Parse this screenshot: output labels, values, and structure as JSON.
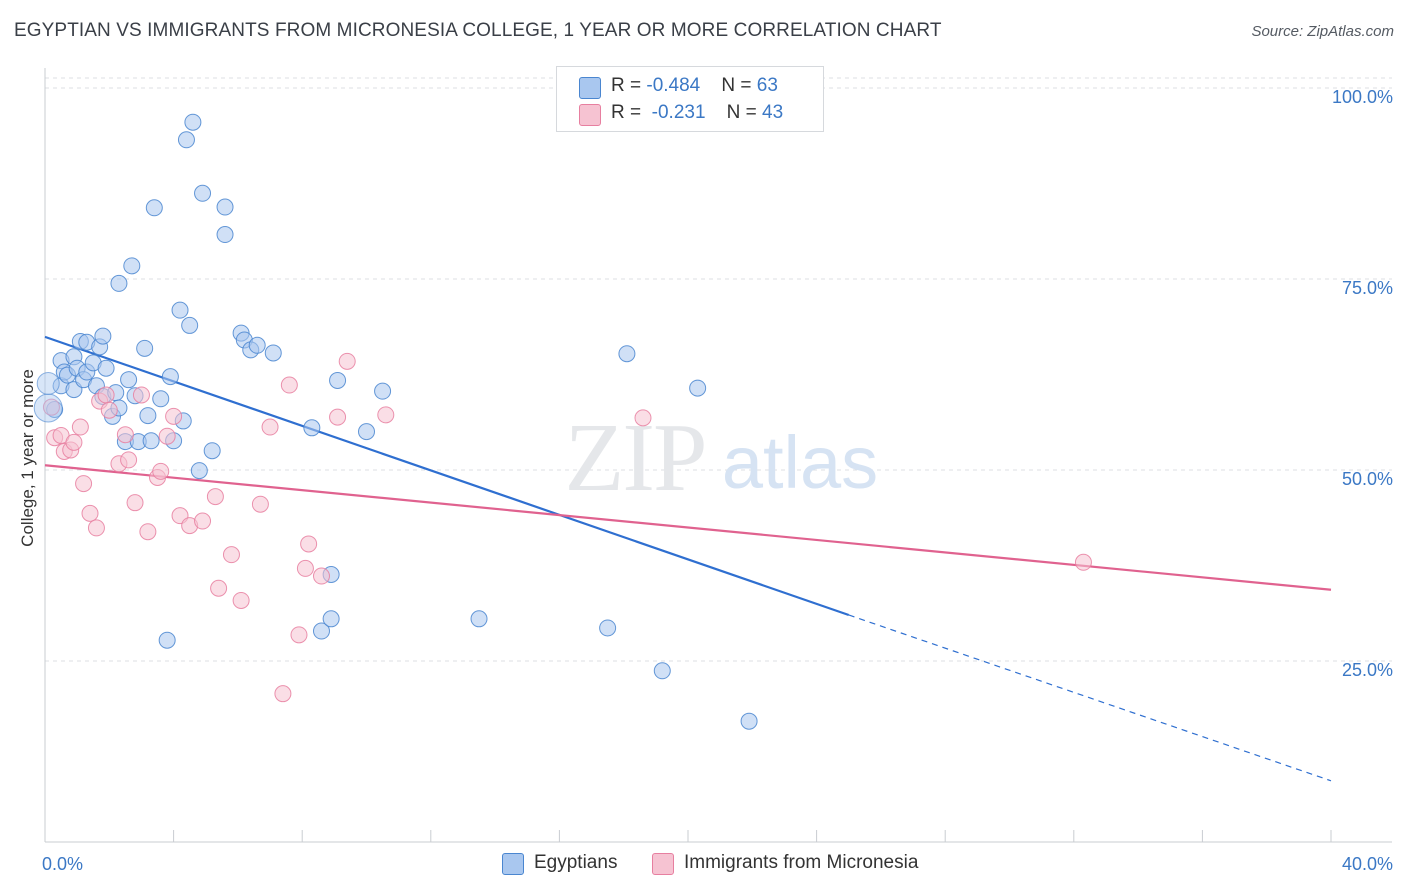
{
  "title": "EGYPTIAN VS IMMIGRANTS FROM MICRONESIA COLLEGE, 1 YEAR OR MORE CORRELATION CHART",
  "source": "Source: ZipAtlas.com",
  "watermark": {
    "zip": "ZIP",
    "atlas": "atlas"
  },
  "legend_stats": [
    {
      "r_label": "R = ",
      "r_value": "-0.484",
      "n_label": "N = ",
      "n_value": "63"
    },
    {
      "r_label": "R = ",
      "r_value": "-0.231",
      "n_label": "N = ",
      "n_value": "43"
    }
  ],
  "chart_data": {
    "type": "scatter",
    "title": "EGYPTIAN VS IMMIGRANTS FROM MICRONESIA COLLEGE, 1 YEAR OR MORE CORRELATION CHART",
    "xlabel": "",
    "ylabel": "College, 1 year or more",
    "xlim": [
      0,
      40
    ],
    "ylim": [
      0,
      105
    ],
    "x_tick_labels": [
      "0.0%",
      "40.0%"
    ],
    "y_ticks": [
      25,
      50,
      75,
      100
    ],
    "y_tick_labels": [
      "25.0%",
      "50.0%",
      "75.0%",
      "100.0%"
    ],
    "grid": true,
    "legend_position": "bottom",
    "colors": {
      "Egyptians": {
        "fill": "#a9c7ef",
        "stroke": "#4a86d0",
        "line": "#2f6fd0"
      },
      "Immigrants from Micronesia": {
        "fill": "#f6c3d2",
        "stroke": "#e77fa0",
        "line": "#e0628f"
      }
    },
    "series": [
      {
        "name": "Egyptians",
        "r": -0.484,
        "n": 63,
        "trend": {
          "x0": 0,
          "y0": 68.6,
          "x1": 25,
          "y1": 32.2,
          "dashed_to_x": 40,
          "dashed_to_y": 10.5
        },
        "points": [
          [
            0.3,
            59.1
          ],
          [
            0.5,
            62.2
          ],
          [
            0.5,
            65.5
          ],
          [
            0.6,
            64.0
          ],
          [
            0.7,
            63.6
          ],
          [
            0.9,
            66.0
          ],
          [
            0.9,
            61.7
          ],
          [
            1.0,
            64.5
          ],
          [
            1.2,
            63.0
          ],
          [
            1.1,
            68.0
          ],
          [
            1.3,
            64.0
          ],
          [
            1.3,
            67.9
          ],
          [
            1.5,
            65.2
          ],
          [
            1.6,
            62.2
          ],
          [
            1.7,
            67.3
          ],
          [
            1.8,
            60.8
          ],
          [
            1.8,
            68.7
          ],
          [
            1.9,
            64.5
          ],
          [
            2.1,
            58.2
          ],
          [
            2.2,
            61.3
          ],
          [
            2.3,
            59.3
          ],
          [
            2.3,
            75.6
          ],
          [
            2.5,
            54.9
          ],
          [
            2.6,
            63.0
          ],
          [
            2.7,
            77.9
          ],
          [
            2.8,
            60.9
          ],
          [
            2.9,
            54.9
          ],
          [
            3.1,
            67.1
          ],
          [
            3.2,
            58.3
          ],
          [
            3.3,
            55.0
          ],
          [
            3.4,
            85.5
          ],
          [
            3.6,
            60.5
          ],
          [
            3.8,
            28.9
          ],
          [
            3.9,
            63.4
          ],
          [
            4.0,
            55.0
          ],
          [
            4.2,
            72.1
          ],
          [
            4.3,
            57.6
          ],
          [
            4.4,
            94.4
          ],
          [
            4.5,
            70.1
          ],
          [
            4.6,
            96.7
          ],
          [
            4.8,
            51.1
          ],
          [
            4.9,
            87.4
          ],
          [
            5.2,
            53.7
          ],
          [
            5.6,
            85.6
          ],
          [
            5.6,
            82.0
          ],
          [
            6.1,
            69.1
          ],
          [
            6.2,
            68.2
          ],
          [
            6.4,
            66.9
          ],
          [
            6.6,
            67.5
          ],
          [
            7.1,
            66.5
          ],
          [
            8.3,
            56.7
          ],
          [
            8.6,
            30.1
          ],
          [
            8.9,
            31.7
          ],
          [
            8.9,
            37.5
          ],
          [
            9.1,
            62.9
          ],
          [
            10.0,
            56.2
          ],
          [
            10.5,
            61.5
          ],
          [
            13.5,
            31.7
          ],
          [
            17.5,
            30.5
          ],
          [
            18.1,
            66.4
          ],
          [
            19.2,
            24.9
          ],
          [
            20.3,
            61.9
          ],
          [
            21.9,
            18.3
          ]
        ]
      },
      {
        "name": "Immigrants from Micronesia",
        "r": -0.231,
        "n": 43,
        "trend": {
          "x0": 0,
          "y0": 51.8,
          "x1": 40,
          "y1": 35.5
        },
        "points": [
          [
            0.2,
            59.4
          ],
          [
            0.3,
            55.4
          ],
          [
            0.5,
            55.7
          ],
          [
            0.6,
            53.6
          ],
          [
            0.8,
            53.8
          ],
          [
            0.9,
            54.8
          ],
          [
            1.1,
            56.8
          ],
          [
            1.2,
            49.4
          ],
          [
            1.4,
            45.5
          ],
          [
            1.6,
            43.6
          ],
          [
            1.7,
            60.2
          ],
          [
            1.9,
            61.0
          ],
          [
            2.0,
            59.0
          ],
          [
            2.3,
            52.0
          ],
          [
            2.5,
            55.8
          ],
          [
            2.6,
            52.5
          ],
          [
            2.8,
            46.9
          ],
          [
            3.0,
            61.0
          ],
          [
            3.2,
            43.1
          ],
          [
            3.5,
            50.2
          ],
          [
            3.6,
            51.0
          ],
          [
            3.8,
            55.6
          ],
          [
            4.0,
            58.2
          ],
          [
            4.2,
            45.2
          ],
          [
            4.5,
            43.9
          ],
          [
            4.9,
            44.5
          ],
          [
            5.3,
            47.7
          ],
          [
            5.4,
            35.7
          ],
          [
            5.8,
            40.1
          ],
          [
            6.1,
            34.1
          ],
          [
            6.7,
            46.7
          ],
          [
            7.0,
            56.8
          ],
          [
            7.4,
            21.9
          ],
          [
            7.6,
            62.3
          ],
          [
            7.9,
            29.6
          ],
          [
            8.1,
            38.3
          ],
          [
            8.2,
            41.5
          ],
          [
            8.6,
            37.3
          ],
          [
            9.1,
            58.1
          ],
          [
            9.4,
            65.4
          ],
          [
            10.6,
            58.4
          ],
          [
            18.6,
            58.0
          ],
          [
            32.3,
            39.1
          ]
        ]
      }
    ]
  }
}
